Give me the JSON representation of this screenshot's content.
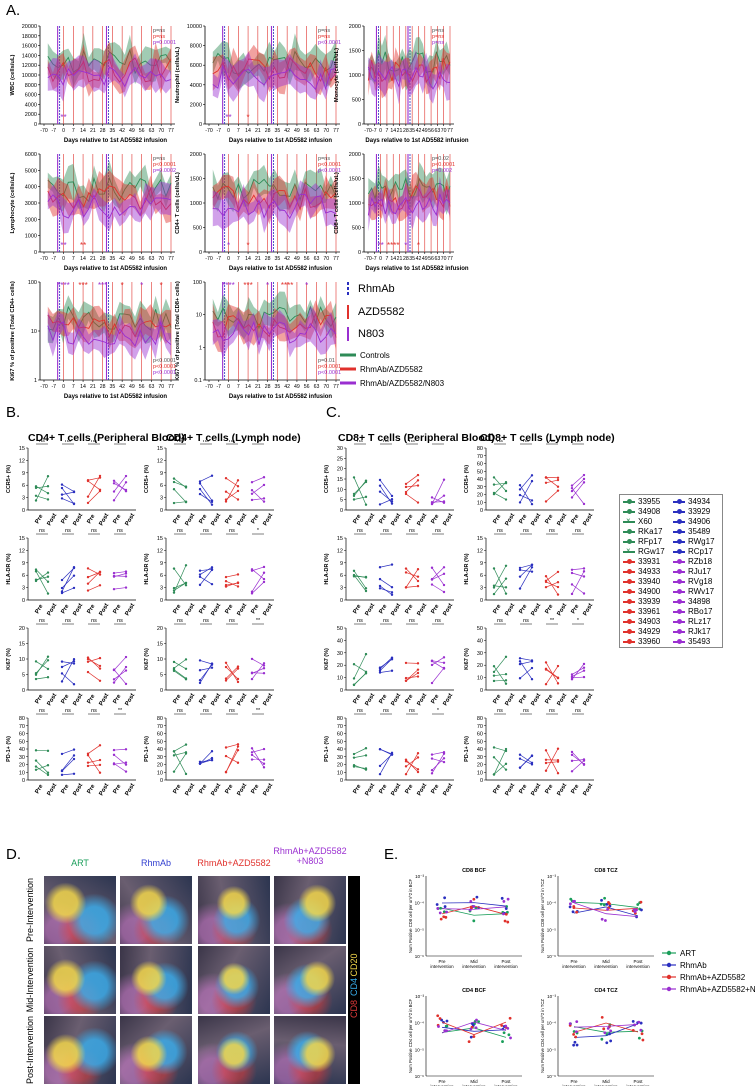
{
  "panels": {
    "A": "A.",
    "B": "B.",
    "C": "C.",
    "D": "D.",
    "E": "E."
  },
  "panelA": {
    "xlabel": "Days relative to 1st AD5582 infusion",
    "xticks": [
      "-70",
      "-7",
      "0",
      "7",
      "14",
      "21",
      "28",
      "35",
      "42",
      "49",
      "56",
      "63",
      "70",
      "77"
    ],
    "plots": [
      {
        "ylabel": "WBC (cells/uL)",
        "yticks": [
          "0",
          "2000",
          "4000",
          "6000",
          "8000",
          "10000",
          "12000",
          "14000",
          "16000",
          "18000",
          "20000"
        ],
        "pvals": [
          "p=ns",
          "p=ns",
          "p=0.0001"
        ],
        "stars": [
          "**"
        ]
      },
      {
        "ylabel": "Neutrophil (cells/uL)",
        "yticks": [
          "0",
          "2000",
          "4000",
          "6000",
          "8000",
          "10000"
        ],
        "pvals": [
          "p=ns",
          "p=ns",
          "p<0.0001"
        ],
        "stars": [
          "**",
          "*"
        ]
      },
      {
        "ylabel": "Monocyte (cells/uL)",
        "yticks": [
          "0",
          "500",
          "1000",
          "1500",
          "2000"
        ],
        "pvals": [
          "p=ns",
          "p=ns",
          "p=ns"
        ],
        "stars": []
      },
      {
        "ylabel": "Lymphocyte (cells/uL)",
        "yticks": [
          "0",
          "1000",
          "2000",
          "3000",
          "4000",
          "5000",
          "6000"
        ],
        "pvals": [
          "p=ns",
          "p<0.0001",
          "p=0.0002"
        ],
        "stars": [
          "**",
          "**"
        ]
      },
      {
        "ylabel": "CD4+ T cells (cells/uL)",
        "yticks": [
          "0",
          "500",
          "1000",
          "1500",
          "2000"
        ],
        "pvals": [
          "p=ns",
          "p<0.0001",
          "p<0.0001"
        ],
        "stars": [
          "*",
          "*"
        ]
      },
      {
        "ylabel": "CD8+ T cells (cells/uL)",
        "yticks": [
          "0",
          "500",
          "1000",
          "1500",
          "2000"
        ],
        "pvals": [
          "p=0.02",
          "p<0.0001",
          "p=0.002"
        ],
        "stars": [
          "**",
          "****",
          "*",
          "*"
        ]
      },
      {
        "ylabel": "Ki67 % of positive (Total CD4+ cells)",
        "yticks": [
          "1",
          "10",
          "100"
        ],
        "pvals": [
          "p<0.0001",
          "p<0.0001",
          "p<0.0001"
        ],
        "stars": [
          "****",
          "***",
          "***",
          "*",
          "*",
          "*"
        ]
      },
      {
        "ylabel": "Ki67 % of positive (Total CD8+ cells)",
        "yticks": [
          "0.1",
          "1",
          "10",
          "100"
        ],
        "pvals": [
          "p=0.01",
          "p<0.0001",
          "p<0.0001"
        ],
        "stars": [
          "****",
          "***",
          "*",
          "****",
          "*"
        ]
      }
    ],
    "legend_lines": [
      "RhmAb",
      "AZD5582",
      "N803"
    ],
    "legend_groups": [
      "Controls",
      "RhmAb/AZD5582",
      "RhmAb/AZD5582/N803"
    ]
  },
  "panelB": {
    "titles": [
      "CD4+ T cells (Peripheral Blood)",
      "CD4+ T cells (Lymph node)"
    ],
    "rows": [
      "CCR5+ (%)",
      "HLA-DR (%)",
      "Ki67 (%)",
      "PD-1+ (%)"
    ],
    "xlabels": [
      "Pre",
      "Post"
    ],
    "sig": [
      [
        "ns",
        "ns",
        "ns",
        "**"
      ],
      [
        "ns",
        "ns",
        "ns",
        "ns"
      ],
      [
        "ns",
        "ns",
        "ns",
        "ns"
      ],
      [
        "ns",
        "ns",
        "ns",
        "*"
      ],
      [
        "ns",
        "ns",
        "ns",
        "ns"
      ],
      [
        "ns",
        "ns",
        "ns",
        "**"
      ],
      [
        "ns",
        "ns",
        "ns",
        "**"
      ],
      [
        "ns",
        "ns",
        "ns",
        "**"
      ]
    ]
  },
  "panelC": {
    "titles": [
      "CD8+ T cells (Peripheral Blood)",
      "CD8+ T cells (Lymph node)"
    ],
    "rows": [
      "CCR5+ (%)",
      "HLA-DR (%)",
      "Ki67 (%)",
      "PD-1+ (%)"
    ],
    "xlabels": [
      "Pre",
      "Post"
    ],
    "sig": [
      [
        "ns",
        "ns",
        "ns",
        "**"
      ],
      [
        "ns",
        "ns",
        "ns",
        "ns"
      ],
      [
        "ns",
        "ns",
        "ns",
        "ns"
      ],
      [
        "ns",
        "ns",
        "ns",
        "ns"
      ],
      [
        "ns",
        "ns",
        "ns",
        "ns"
      ],
      [
        "ns",
        "ns",
        "**",
        "*"
      ],
      [
        "ns",
        "ns",
        "ns",
        "*"
      ],
      [
        "ns",
        "ns",
        "ns",
        "ns"
      ]
    ]
  },
  "animals": {
    "left": [
      {
        "id": "33955",
        "color": "#2e8b57",
        "mk": "o"
      },
      {
        "id": "34908",
        "color": "#2e8b57",
        "mk": "o"
      },
      {
        "id": "X60",
        "color": "#2e8b57",
        "mk": "x"
      },
      {
        "id": "RKa17",
        "color": "#2e8b57",
        "mk": "o"
      },
      {
        "id": "RFp17",
        "color": "#2e8b57",
        "mk": "o"
      },
      {
        "id": "RGw17",
        "color": "#2e8b57",
        "mk": "x"
      },
      {
        "id": "33931",
        "color": "#e0312c",
        "mk": "o"
      },
      {
        "id": "34933",
        "color": "#e0312c",
        "mk": "o"
      },
      {
        "id": "33940",
        "color": "#e0312c",
        "mk": "o"
      },
      {
        "id": "34900",
        "color": "#e0312c",
        "mk": "o"
      },
      {
        "id": "33939",
        "color": "#e0312c",
        "mk": "o"
      },
      {
        "id": "33961",
        "color": "#e0312c",
        "mk": "o"
      },
      {
        "id": "34903",
        "color": "#e0312c",
        "mk": "o"
      },
      {
        "id": "34929",
        "color": "#e0312c",
        "mk": "o"
      },
      {
        "id": "33960",
        "color": "#e0312c",
        "mk": "o"
      }
    ],
    "right": [
      {
        "id": "34934",
        "color": "#2a2fbf",
        "mk": "o"
      },
      {
        "id": "33929",
        "color": "#2a2fbf",
        "mk": "o"
      },
      {
        "id": "34906",
        "color": "#2a2fbf",
        "mk": "o"
      },
      {
        "id": "35489",
        "color": "#2a2fbf",
        "mk": "o"
      },
      {
        "id": "RWg17",
        "color": "#2a2fbf",
        "mk": "o"
      },
      {
        "id": "RCp17",
        "color": "#2a2fbf",
        "mk": "o"
      },
      {
        "id": "RZb18",
        "color": "#9a2fd0",
        "mk": "o"
      },
      {
        "id": "RJu17",
        "color": "#9a2fd0",
        "mk": "o"
      },
      {
        "id": "RVg18",
        "color": "#9a2fd0",
        "mk": "o"
      },
      {
        "id": "RWv17",
        "color": "#9a2fd0",
        "mk": "o"
      },
      {
        "id": "34898",
        "color": "#9a2fd0",
        "mk": "o"
      },
      {
        "id": "RBo17",
        "color": "#9a2fd0",
        "mk": "o"
      },
      {
        "id": "RLz17",
        "color": "#9a2fd0",
        "mk": "o"
      },
      {
        "id": "RJk17",
        "color": "#9a2fd0",
        "mk": "o"
      },
      {
        "id": "35493",
        "color": "#9a2fd0",
        "mk": "o"
      }
    ]
  },
  "panelD": {
    "groups": [
      {
        "label": "ART",
        "color": "#1a9e5a"
      },
      {
        "label": "RhmAb",
        "color": "#3340d0"
      },
      {
        "label": "RhmAb+AZD5582",
        "color": "#e0312c"
      },
      {
        "label": "RhmAb+AZD5582 +N803",
        "color": "#9a2fd0"
      }
    ],
    "rows": [
      "Pre-Intervention",
      "Mid-Intervention",
      "Post-Intervention"
    ],
    "stains": [
      {
        "label": "CD20",
        "color": "#f2d64b"
      },
      {
        "label": "CD4",
        "color": "#3ab0f0"
      },
      {
        "label": "CD8",
        "color": "#e23a3a"
      }
    ]
  },
  "panelE": {
    "plots": [
      {
        "title": "CD8 BCF",
        "ylabel": "Num Positive CD8 cell per um^2 in BCF"
      },
      {
        "title": "CD8 TCZ",
        "ylabel": "Num Positive CD8 cell per um^2 in TCZ"
      },
      {
        "title": "CD4 BCF",
        "ylabel": "Num Positive CD4 cell per um^2 in BCF"
      },
      {
        "title": "CD4 TCZ",
        "ylabel": "Num Positive CD4 cell per um^2 in TCZ"
      }
    ],
    "xticks": [
      "Pre intervention",
      "Mid intervention",
      "Post intervention"
    ],
    "legend": [
      {
        "label": "ART",
        "color": "#1a9e5a"
      },
      {
        "label": "RhmAb",
        "color": "#2a2fbf"
      },
      {
        "label": "RhmAb+AZD5582",
        "color": "#e0312c"
      },
      {
        "label": "RhmAb+AZD5582+N803",
        "color": "#9a2fd0"
      }
    ]
  },
  "colors": {
    "green": "#2e8b57",
    "red": "#e0312c",
    "purple": "#9a2fd0",
    "blue": "#2a2fbf"
  }
}
